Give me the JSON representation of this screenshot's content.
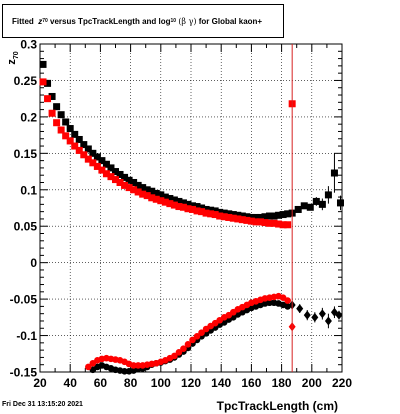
{
  "title": {
    "fitted": "Fitted",
    "z_sym": "z",
    "z_sub": "70",
    "versus": "versus TpcTrackLength and log",
    "log_sub": "10",
    "beta_gamma": "(β  γ)",
    "tail": "for Global kaon+"
  },
  "footer": "Fri Dec 31 13:15:20 2021",
  "chart_data": {
    "type": "scatter",
    "xlabel": "TpcTrackLength (cm)",
    "ylabel": "z",
    "ylabel_sub": "70",
    "xlim": [
      20,
      220
    ],
    "ylim": [
      -0.15,
      0.3
    ],
    "xticks": [
      20,
      40,
      60,
      80,
      100,
      120,
      140,
      160,
      180,
      200,
      220
    ],
    "xtick_labels": [
      "20",
      "40",
      "60",
      "80",
      "100",
      "120",
      "140",
      "160",
      "180",
      "200",
      "220"
    ],
    "yticks": [
      -0.15,
      -0.1,
      -0.05,
      0,
      0.05,
      0.1,
      0.15,
      0.2,
      0.25,
      0.3
    ],
    "ytick_labels": [
      "-0.15",
      "-0.1",
      "-0.05",
      "0",
      "0.05",
      "0.1",
      "0.15",
      "0.2",
      "0.25",
      "0.3"
    ],
    "grid": true,
    "vertical_line_x": 187,
    "colors": {
      "black": "#000000",
      "red": "#ff0000",
      "refline": "#d62020"
    },
    "series": [
      {
        "color": "#000000",
        "marker": "square",
        "x": [
          22,
          25,
          28,
          31,
          34,
          37,
          40,
          43,
          46,
          49,
          52,
          55,
          58,
          61,
          64,
          67,
          70,
          73,
          76,
          79,
          82,
          85,
          88,
          91,
          94,
          97,
          100,
          103,
          106,
          109,
          112,
          115,
          118,
          121,
          124,
          127,
          130,
          133,
          136,
          139,
          142,
          145,
          148,
          151,
          154,
          157,
          160,
          163,
          166,
          169,
          172,
          175,
          178,
          181,
          184,
          187,
          191,
          195,
          199,
          203,
          207,
          211,
          215,
          219
        ],
        "y": [
          0.272,
          0.246,
          0.228,
          0.214,
          0.203,
          0.193,
          0.184,
          0.176,
          0.169,
          0.162,
          0.156,
          0.15,
          0.145,
          0.14,
          0.135,
          0.13,
          0.125,
          0.121,
          0.117,
          0.113,
          0.11,
          0.106,
          0.103,
          0.1,
          0.098,
          0.095,
          0.093,
          0.09,
          0.088,
          0.086,
          0.084,
          0.082,
          0.08,
          0.078,
          0.077,
          0.075,
          0.073,
          0.072,
          0.071,
          0.069,
          0.068,
          0.067,
          0.066,
          0.065,
          0.064,
          0.063,
          0.062,
          0.062,
          0.062,
          0.063,
          0.064,
          0.064,
          0.065,
          0.066,
          0.067,
          0.068,
          0.073,
          0.078,
          0.076,
          0.084,
          0.08,
          0.093,
          0.123,
          0.082
        ],
        "yerr": [
          0,
          0,
          0,
          0,
          0,
          0,
          0,
          0,
          0,
          0,
          0,
          0,
          0,
          0,
          0,
          0,
          0,
          0,
          0,
          0,
          0,
          0,
          0,
          0,
          0,
          0,
          0,
          0,
          0,
          0,
          0,
          0,
          0,
          0,
          0,
          0,
          0,
          0,
          0,
          0,
          0,
          0,
          0,
          0,
          0,
          0,
          0,
          0,
          0,
          0,
          0,
          0,
          0,
          0,
          0,
          0,
          0,
          0,
          0,
          0.006,
          0.008,
          0.012,
          0.027,
          0.01
        ]
      },
      {
        "color": "#ff0000",
        "marker": "square",
        "x": [
          22,
          25,
          28,
          31,
          34,
          37,
          40,
          43,
          46,
          49,
          52,
          55,
          58,
          61,
          64,
          67,
          70,
          73,
          76,
          79,
          82,
          85,
          88,
          91,
          94,
          97,
          100,
          103,
          106,
          109,
          112,
          115,
          118,
          121,
          124,
          127,
          130,
          133,
          136,
          139,
          142,
          145,
          148,
          151,
          154,
          157,
          160,
          163,
          166,
          169,
          172,
          175,
          178,
          181,
          184,
          187
        ],
        "y": [
          0.248,
          0.225,
          0.205,
          0.192,
          0.182,
          0.174,
          0.167,
          0.16,
          0.154,
          0.148,
          0.142,
          0.137,
          0.132,
          0.127,
          0.122,
          0.118,
          0.114,
          0.11,
          0.106,
          0.103,
          0.1,
          0.097,
          0.094,
          0.092,
          0.089,
          0.087,
          0.085,
          0.083,
          0.081,
          0.079,
          0.077,
          0.076,
          0.074,
          0.073,
          0.071,
          0.07,
          0.068,
          0.067,
          0.066,
          0.064,
          0.063,
          0.062,
          0.061,
          0.06,
          0.059,
          0.058,
          0.057,
          0.056,
          0.056,
          0.055,
          0.054,
          0.054,
          0.053,
          0.052,
          0.052,
          0.218
        ]
      },
      {
        "color": "#000000",
        "marker": "circle",
        "x": [
          55,
          58,
          61,
          64,
          67,
          70,
          73,
          76,
          79,
          82,
          85,
          88,
          91,
          94,
          97,
          100,
          103,
          106,
          109,
          112,
          115,
          118,
          121,
          124,
          127,
          130,
          133,
          136,
          139,
          142,
          145,
          148,
          151,
          154,
          157,
          160,
          163,
          166,
          169,
          172,
          175,
          178,
          181,
          184
        ],
        "y": [
          -0.147,
          -0.143,
          -0.141,
          -0.143,
          -0.145,
          -0.147,
          -0.148,
          -0.149,
          -0.149,
          -0.148,
          -0.146,
          -0.145,
          -0.143,
          -0.14,
          -0.138,
          -0.137,
          -0.135,
          -0.133,
          -0.13,
          -0.126,
          -0.122,
          -0.117,
          -0.111,
          -0.106,
          -0.101,
          -0.097,
          -0.093,
          -0.089,
          -0.085,
          -0.082,
          -0.078,
          -0.075,
          -0.071,
          -0.068,
          -0.065,
          -0.062,
          -0.06,
          -0.058,
          -0.056,
          -0.055,
          -0.055,
          -0.056,
          -0.058,
          -0.06
        ]
      },
      {
        "color": "#000000",
        "marker": "diamond",
        "x": [
          187,
          192,
          197,
          202,
          207,
          211,
          215,
          218
        ],
        "y": [
          -0.058,
          -0.063,
          -0.072,
          -0.075,
          -0.07,
          -0.08,
          -0.068,
          -0.072
        ],
        "yerr": [
          0.004,
          0.006,
          0.007,
          0.007,
          0.008,
          0.01,
          0.008,
          0.006
        ]
      },
      {
        "color": "#ff0000",
        "marker": "circle",
        "x": [
          52,
          55,
          58,
          61,
          64,
          67,
          70,
          73,
          76,
          79,
          82,
          85,
          88,
          91,
          94,
          97,
          100,
          103,
          106,
          109,
          112,
          115,
          118,
          121,
          124,
          127,
          130,
          133,
          136,
          139,
          142,
          145,
          148,
          151,
          154,
          157,
          160,
          163,
          166,
          169,
          172,
          175,
          178,
          181,
          184
        ],
        "y": [
          -0.143,
          -0.138,
          -0.134,
          -0.132,
          -0.131,
          -0.132,
          -0.133,
          -0.134,
          -0.136,
          -0.139,
          -0.141,
          -0.141,
          -0.141,
          -0.14,
          -0.139,
          -0.138,
          -0.136,
          -0.134,
          -0.131,
          -0.128,
          -0.123,
          -0.118,
          -0.112,
          -0.106,
          -0.101,
          -0.096,
          -0.091,
          -0.087,
          -0.083,
          -0.079,
          -0.075,
          -0.072,
          -0.068,
          -0.064,
          -0.061,
          -0.058,
          -0.055,
          -0.053,
          -0.051,
          -0.049,
          -0.048,
          -0.047,
          -0.046,
          -0.048,
          -0.052
        ]
      },
      {
        "color": "#ff0000",
        "marker": "diamond",
        "x": [
          187
        ],
        "y": [
          -0.088
        ]
      }
    ]
  }
}
